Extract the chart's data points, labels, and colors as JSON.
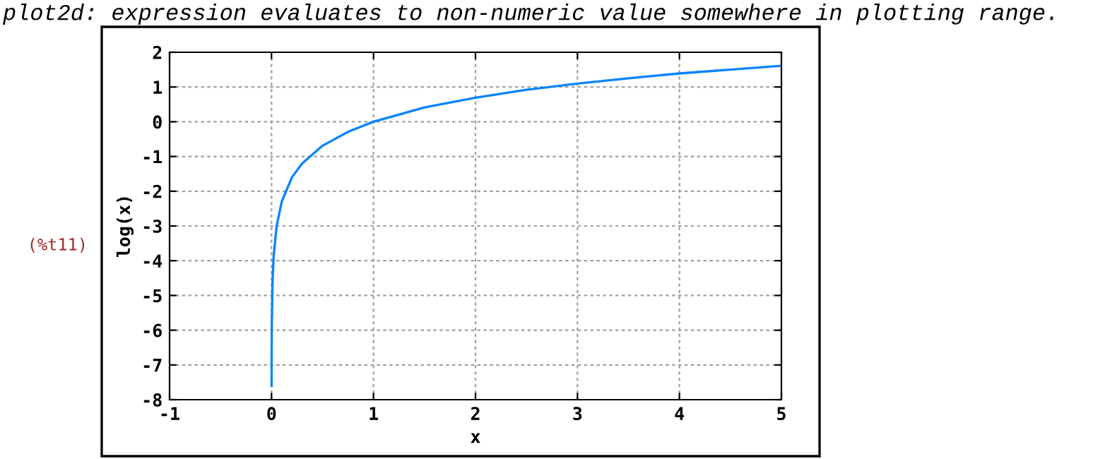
{
  "chart_data": {
    "type": "line",
    "xlabel": "x",
    "ylabel": "log(x)",
    "annotations": [
      "plot2d: expression evaluates to non-numeric value somewhere in plotting range.",
      "(%t11)"
    ],
    "series": [
      {
        "color": "#0a84ff",
        "x": [
          0.0005,
          0.001,
          0.003,
          0.01,
          0.02,
          0.05,
          0.1,
          0.2,
          0.3,
          0.5,
          0.75,
          1,
          1.5,
          2,
          2.5,
          3,
          3.5,
          4,
          4.5,
          5
        ],
        "values": [
          -7.6,
          -6.9,
          -5.8,
          -4.6,
          -3.9,
          -3.0,
          -2.3,
          -1.6,
          -1.2,
          -0.69,
          -0.29,
          0,
          0.41,
          0.69,
          0.92,
          1.1,
          1.25,
          1.39,
          1.5,
          1.61
        ]
      }
    ],
    "xlim": [
      -1,
      5
    ],
    "xticks": [
      -1,
      0,
      1,
      2,
      3,
      4,
      5
    ],
    "ylim": [
      -8,
      2
    ],
    "yticks": [
      -8,
      -7,
      -6,
      -5,
      -4,
      -3,
      -2,
      -1,
      0,
      1,
      2
    ],
    "grid": true,
    "marker": "none",
    "line_style": "solid"
  }
}
